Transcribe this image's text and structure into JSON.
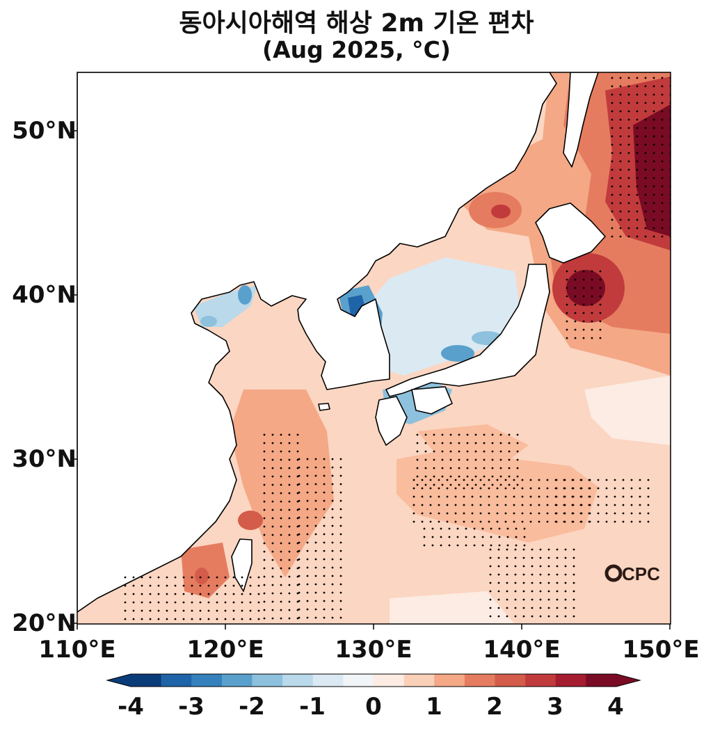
{
  "title": {
    "line1": "동아시아해역 해상 2m 기온 편차",
    "line2": "(Aug 2025, °C)"
  },
  "axes": {
    "lat_ticks": [
      "50°N",
      "40°N",
      "30°N",
      "20°N"
    ],
    "lon_ticks": [
      "110°E",
      "120°E",
      "130°E",
      "140°E",
      "150°E"
    ],
    "lon_range": [
      110,
      150
    ],
    "lat_range": [
      20,
      53.5
    ]
  },
  "logo": {
    "text": "CPC"
  },
  "colorbar": {
    "ticks": [
      "-4",
      "-3",
      "-2",
      "-1",
      "0",
      "1",
      "2",
      "3",
      "4"
    ],
    "range": [
      -4,
      4
    ],
    "step": 0.5,
    "colors": [
      "#0b3c7a",
      "#1f63a8",
      "#3581bd",
      "#5aa0cc",
      "#8dc1dd",
      "#bad9ea",
      "#dbe9f2",
      "#f2f5f7",
      "#fcece3",
      "#fbd0b9",
      "#f4a886",
      "#e57c60",
      "#d35c4b",
      "#c13b3c",
      "#a51c30",
      "#7a0b24"
    ]
  },
  "colors": {
    "land": "#ffffff",
    "coastline": "#000000",
    "ocean_base": "#fbd6c2"
  }
}
